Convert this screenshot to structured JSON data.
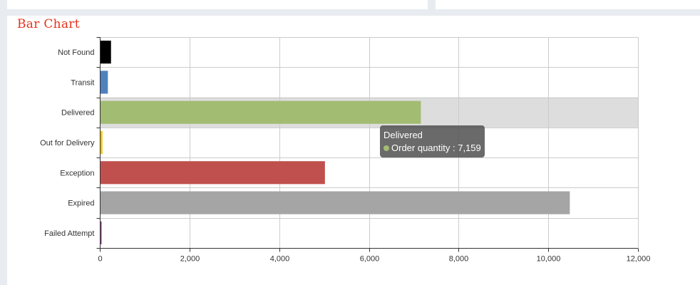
{
  "chart_data": {
    "type": "bar",
    "orientation": "horizontal",
    "title": "Bar Chart",
    "categories": [
      "Not Found",
      "Transit",
      "Delivered",
      "Out for Delivery",
      "Exception",
      "Expired",
      "Failed Attempt"
    ],
    "series": [
      {
        "name": "Order quantity",
        "values": [
          250,
          180,
          7159,
          60,
          5020,
          10480,
          20
        ]
      }
    ],
    "colors": [
      "#000000",
      "#4f81bd",
      "#a2bc72",
      "#f5c500",
      "#c0504d",
      "#a5a5a5",
      "#7f3f7f"
    ],
    "xlim": [
      0,
      12000
    ],
    "xticks": [
      "0",
      "2,000",
      "4,000",
      "6,000",
      "8,000",
      "10,000",
      "12,000"
    ],
    "grid": true,
    "highlighted_category": "Delivered",
    "tooltip": {
      "title": "Delivered",
      "label": "Order quantity : 7,159",
      "dot_color": "#a2bc72"
    }
  }
}
